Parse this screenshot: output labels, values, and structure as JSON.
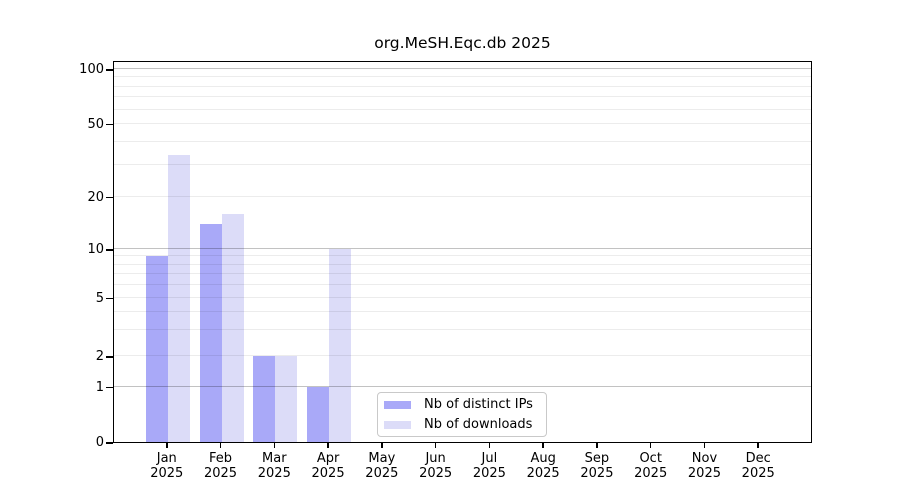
{
  "title": "org.MeSH.Eqc.db 2025",
  "chart_data": {
    "type": "bar",
    "title": "org.MeSH.Eqc.db 2025",
    "categories": [
      "Jan 2025",
      "Feb 2025",
      "Mar 2025",
      "Apr 2025",
      "May 2025",
      "Jun 2025",
      "Jul 2025",
      "Aug 2025",
      "Sep 2025",
      "Oct 2025",
      "Nov 2025",
      "Dec 2025"
    ],
    "x_tick_months": [
      "Jan",
      "Feb",
      "Mar",
      "Apr",
      "May",
      "Jun",
      "Jul",
      "Aug",
      "Sep",
      "Oct",
      "Nov",
      "Dec"
    ],
    "x_tick_year": "2025",
    "series": [
      {
        "name": "Nb of distinct IPs",
        "color": "#a9a9f8",
        "values": [
          9,
          14,
          2,
          1,
          0,
          0,
          0,
          0,
          0,
          0,
          0,
          0
        ]
      },
      {
        "name": "Nb of downloads",
        "color": "#dcdcf8",
        "values": [
          34,
          16,
          2,
          10,
          0,
          0,
          0,
          0,
          0,
          0,
          0,
          0
        ]
      }
    ],
    "xlabel": "",
    "ylabel": "",
    "ylim": [
      0,
      112
    ],
    "grid": true,
    "legend_position": "bottom-center",
    "yaxis": {
      "scale": "log-like with linear 0-1 segment",
      "ticks": [
        {
          "value": 0,
          "frac": 0.0
        },
        {
          "value": 1,
          "frac": 0.144
        },
        {
          "value": 2,
          "frac": 0.2251
        },
        {
          "value": 5,
          "frac": 0.377
        },
        {
          "value": 10,
          "frac": 0.5052
        },
        {
          "value": 20,
          "frac": 0.6414
        },
        {
          "value": 50,
          "frac": 0.8325
        },
        {
          "value": 100,
          "frac": 0.9764
        }
      ],
      "major_gridline_values": [
        1,
        10,
        100
      ],
      "minor_gridline_values": [
        3,
        4,
        6,
        7,
        8,
        9,
        30,
        40,
        60,
        70,
        80,
        90
      ]
    }
  },
  "legend": {
    "items": [
      {
        "label": "Nb of distinct IPs",
        "color": "#a9a9f8"
      },
      {
        "label": "Nb of downloads",
        "color": "#dcdcf8"
      }
    ]
  },
  "colors": {
    "background": "#ffffff",
    "spine": "#000000",
    "grid_minor": "#ececec",
    "grid_major": "#c2c2c2",
    "text": "#000000"
  }
}
